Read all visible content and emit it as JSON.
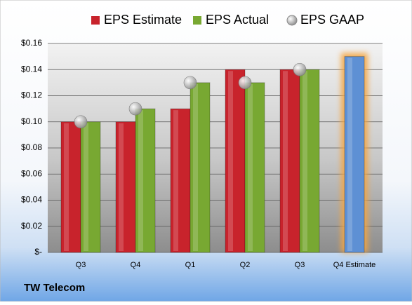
{
  "chart_data": {
    "type": "bar",
    "categories": [
      "Q3",
      "Q4",
      "Q1",
      "Q2",
      "Q3",
      "Q4 Estimate"
    ],
    "series": [
      {
        "name": "EPS Estimate",
        "color": "#c8232c",
        "colors": [
          "#c8232c",
          "#c8232c",
          "#c8232c",
          "#c8232c",
          "#c8232c",
          "#5e90d4"
        ],
        "values": [
          0.1,
          0.1,
          0.11,
          0.14,
          0.14,
          0.15
        ]
      },
      {
        "name": "EPS Actual",
        "color": "#78a832",
        "values": [
          0.1,
          0.11,
          0.13,
          0.13,
          0.14,
          null
        ]
      },
      {
        "name": "EPS GAAP",
        "color": "#a8a8a8",
        "marker": "circle",
        "values": [
          0.1,
          0.11,
          0.13,
          0.13,
          0.14,
          null
        ]
      }
    ],
    "ylim": [
      0,
      0.16
    ],
    "yticks": [
      {
        "value": 0,
        "label": "$-"
      },
      {
        "value": 0.02,
        "label": "$0.02"
      },
      {
        "value": 0.04,
        "label": "$0.04"
      },
      {
        "value": 0.06,
        "label": "$0.06"
      },
      {
        "value": 0.08,
        "label": "$0.08"
      },
      {
        "value": 0.1,
        "label": "$0.10"
      },
      {
        "value": 0.12,
        "label": "$0.12"
      },
      {
        "value": 0.14,
        "label": "$0.14"
      },
      {
        "value": 0.16,
        "label": "$0.16"
      }
    ],
    "grid": true,
    "legend": "top",
    "highlight_glow": "#f5a541",
    "footer": "TW Telecom"
  }
}
